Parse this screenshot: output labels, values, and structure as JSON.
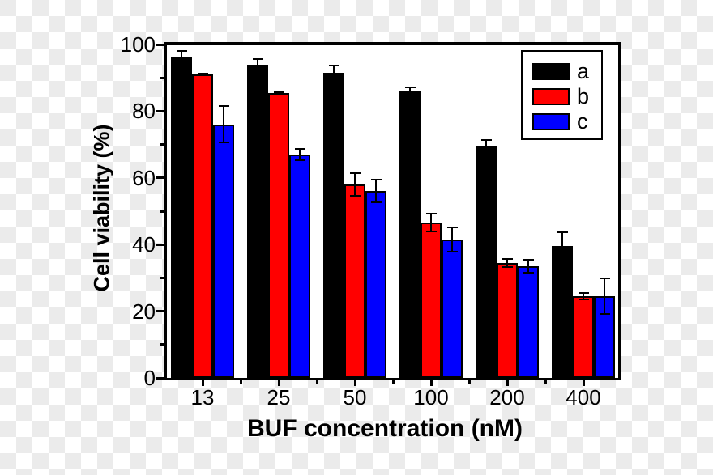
{
  "canvas": {
    "transparency_checker_light": "#ffffff",
    "transparency_checker_dark": "#ebebeb",
    "plot_background": "#ffffff",
    "axis_color": "#000000"
  },
  "chart_data": {
    "type": "bar",
    "title": "",
    "xlabel": "BUF concentration (nM)",
    "ylabel": "Cell viability (%)",
    "categories": [
      "13",
      "25",
      "50",
      "100",
      "200",
      "400"
    ],
    "series": [
      {
        "name": "a",
        "color": "#000000",
        "values": [
          96,
          94,
          91.5,
          86,
          69.5,
          39.5
        ],
        "errors": [
          2.2,
          1.8,
          2.5,
          1.5,
          2.2,
          4.5
        ]
      },
      {
        "name": "b",
        "color": "#ff0000",
        "values": [
          91,
          85.5,
          58,
          46.5,
          34.5,
          24.5
        ],
        "errors": [
          0.5,
          0.5,
          3.6,
          2.9,
          1.5,
          1.2
        ]
      },
      {
        "name": "c",
        "color": "#0000ff",
        "values": [
          76,
          67,
          56,
          41.5,
          33.5,
          24.5
        ],
        "errors": [
          5.7,
          1.9,
          3.6,
          3.8,
          2.3,
          5.5
        ]
      }
    ],
    "ylim": [
      0,
      100
    ],
    "yticks": [
      0,
      20,
      40,
      60,
      80,
      100
    ],
    "yticks_minor": [
      10,
      30,
      50,
      70,
      90
    ],
    "grid": false,
    "error_bars": true,
    "legend_position": "top-right",
    "legend_labels": [
      "a",
      "b",
      "c"
    ]
  }
}
